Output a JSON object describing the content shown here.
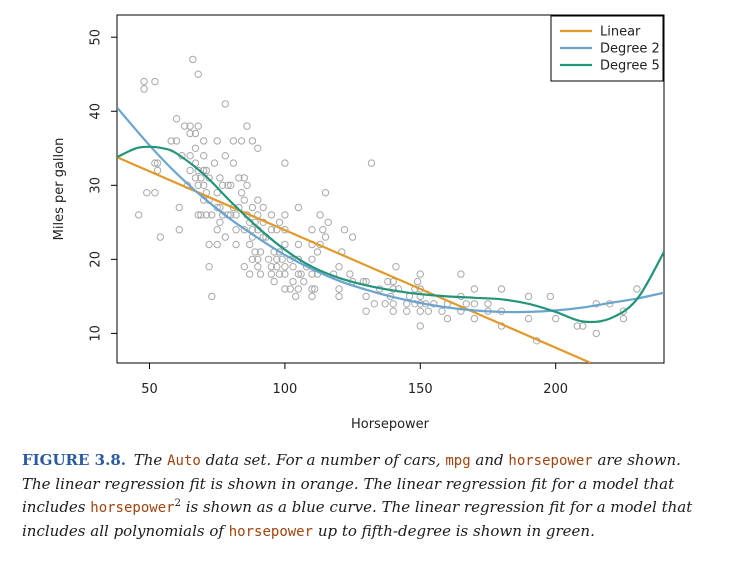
{
  "chart_data": {
    "type": "scatter",
    "xlabel": "Horsepower",
    "ylabel": "Miles per gallon",
    "xlim": [
      38,
      240
    ],
    "ylim": [
      6,
      53
    ],
    "xticks": [
      50,
      100,
      150,
      200
    ],
    "yticks": [
      10,
      20,
      30,
      40,
      50
    ],
    "grid": false,
    "legend_position": "top-right",
    "colors": {
      "points": "#a8a8a8",
      "linear": "#e09a2a",
      "degree2": "#6aa5cf",
      "degree5": "#23957a"
    },
    "points": [
      [
        46,
        26
      ],
      [
        48,
        44
      ],
      [
        48,
        43
      ],
      [
        49,
        29
      ],
      [
        52,
        44
      ],
      [
        52,
        33
      ],
      [
        52,
        29
      ],
      [
        53,
        32
      ],
      [
        53,
        33
      ],
      [
        54,
        23
      ],
      [
        58,
        36
      ],
      [
        60,
        39
      ],
      [
        60,
        36
      ],
      [
        61,
        24
      ],
      [
        61,
        27
      ],
      [
        62,
        34
      ],
      [
        63,
        38
      ],
      [
        64,
        30
      ],
      [
        65,
        32
      ],
      [
        65,
        34
      ],
      [
        65,
        38
      ],
      [
        65,
        37
      ],
      [
        66,
        47
      ],
      [
        67,
        31
      ],
      [
        67,
        33
      ],
      [
        67,
        35
      ],
      [
        67,
        37
      ],
      [
        68,
        30
      ],
      [
        68,
        32
      ],
      [
        68,
        26
      ],
      [
        68,
        38
      ],
      [
        68,
        45
      ],
      [
        69,
        31
      ],
      [
        69,
        26
      ],
      [
        70,
        28
      ],
      [
        70,
        32
      ],
      [
        70,
        34
      ],
      [
        70,
        36
      ],
      [
        70,
        30
      ],
      [
        71,
        32
      ],
      [
        71,
        29
      ],
      [
        71,
        26
      ],
      [
        72,
        31
      ],
      [
        72,
        28
      ],
      [
        72,
        22
      ],
      [
        72,
        19
      ],
      [
        73,
        15
      ],
      [
        73,
        26
      ],
      [
        74,
        33
      ],
      [
        75,
        29
      ],
      [
        75,
        27
      ],
      [
        75,
        24
      ],
      [
        75,
        22
      ],
      [
        75,
        36
      ],
      [
        76,
        31
      ],
      [
        76,
        25
      ],
      [
        76,
        27
      ],
      [
        77,
        26
      ],
      [
        77,
        30
      ],
      [
        78,
        23
      ],
      [
        78,
        34
      ],
      [
        78,
        41
      ],
      [
        79,
        26
      ],
      [
        79,
        30
      ],
      [
        80,
        26
      ],
      [
        80,
        30
      ],
      [
        81,
        27
      ],
      [
        81,
        33
      ],
      [
        81,
        36
      ],
      [
        82,
        24
      ],
      [
        82,
        26
      ],
      [
        82,
        22
      ],
      [
        83,
        31
      ],
      [
        83,
        27
      ],
      [
        84,
        29
      ],
      [
        84,
        36
      ],
      [
        85,
        31
      ],
      [
        85,
        28
      ],
      [
        85,
        24
      ],
      [
        85,
        19
      ],
      [
        86,
        30
      ],
      [
        86,
        38
      ],
      [
        86,
        26
      ],
      [
        87,
        25
      ],
      [
        87,
        22
      ],
      [
        87,
        18
      ],
      [
        88,
        24
      ],
      [
        88,
        27
      ],
      [
        88,
        20
      ],
      [
        88,
        23
      ],
      [
        88,
        36
      ],
      [
        89,
        25
      ],
      [
        89,
        21
      ],
      [
        90,
        24
      ],
      [
        90,
        28
      ],
      [
        90,
        19
      ],
      [
        90,
        20
      ],
      [
        90,
        26
      ],
      [
        90,
        35
      ],
      [
        91,
        21
      ],
      [
        91,
        18
      ],
      [
        92,
        25
      ],
      [
        92,
        23
      ],
      [
        92,
        27
      ],
      [
        93,
        23
      ],
      [
        94,
        20
      ],
      [
        95,
        24
      ],
      [
        95,
        18
      ],
      [
        95,
        26
      ],
      [
        95,
        19
      ],
      [
        96,
        21
      ],
      [
        96,
        17
      ],
      [
        97,
        24
      ],
      [
        97,
        19
      ],
      [
        97,
        20
      ],
      [
        98,
        21
      ],
      [
        98,
        18
      ],
      [
        98,
        25
      ],
      [
        99,
        20
      ],
      [
        100,
        16
      ],
      [
        100,
        19
      ],
      [
        100,
        22
      ],
      [
        100,
        24
      ],
      [
        100,
        26
      ],
      [
        100,
        18
      ],
      [
        100,
        33
      ],
      [
        102,
        16
      ],
      [
        102,
        20
      ],
      [
        103,
        17
      ],
      [
        103,
        19
      ],
      [
        104,
        15
      ],
      [
        105,
        16
      ],
      [
        105,
        18
      ],
      [
        105,
        20
      ],
      [
        105,
        22
      ],
      [
        105,
        27
      ],
      [
        106,
        18
      ],
      [
        107,
        17
      ],
      [
        108,
        19
      ],
      [
        110,
        16
      ],
      [
        110,
        18
      ],
      [
        110,
        20
      ],
      [
        110,
        22
      ],
      [
        110,
        24
      ],
      [
        110,
        15
      ],
      [
        111,
        16
      ],
      [
        112,
        18
      ],
      [
        112,
        21
      ],
      [
        113,
        26
      ],
      [
        113,
        22
      ],
      [
        114,
        24
      ],
      [
        115,
        23
      ],
      [
        115,
        29
      ],
      [
        116,
        25
      ],
      [
        118,
        18
      ],
      [
        120,
        15
      ],
      [
        120,
        16
      ],
      [
        120,
        19
      ],
      [
        121,
        21
      ],
      [
        122,
        24
      ],
      [
        124,
        18
      ],
      [
        125,
        17
      ],
      [
        125,
        23
      ],
      [
        129,
        17
      ],
      [
        130,
        13
      ],
      [
        130,
        15
      ],
      [
        130,
        17
      ],
      [
        132,
        33
      ],
      [
        133,
        14
      ],
      [
        135,
        16
      ],
      [
        137,
        14
      ],
      [
        138,
        17
      ],
      [
        139,
        15
      ],
      [
        140,
        16
      ],
      [
        140,
        14
      ],
      [
        140,
        13
      ],
      [
        140,
        17
      ],
      [
        141,
        19
      ],
      [
        142,
        16
      ],
      [
        145,
        14
      ],
      [
        145,
        13
      ],
      [
        146,
        15
      ],
      [
        148,
        16
      ],
      [
        148,
        14
      ],
      [
        149,
        17
      ],
      [
        150,
        11
      ],
      [
        150,
        13
      ],
      [
        150,
        14
      ],
      [
        150,
        15
      ],
      [
        150,
        16
      ],
      [
        150,
        18
      ],
      [
        152,
        14
      ],
      [
        153,
        13
      ],
      [
        155,
        14
      ],
      [
        158,
        13
      ],
      [
        160,
        12
      ],
      [
        160,
        14
      ],
      [
        165,
        13
      ],
      [
        165,
        15
      ],
      [
        165,
        18
      ],
      [
        167,
        14
      ],
      [
        170,
        12
      ],
      [
        170,
        14
      ],
      [
        170,
        16
      ],
      [
        175,
        13
      ],
      [
        175,
        14
      ],
      [
        180,
        11
      ],
      [
        180,
        13
      ],
      [
        180,
        16
      ],
      [
        190,
        12
      ],
      [
        190,
        15
      ],
      [
        193,
        9
      ],
      [
        198,
        15
      ],
      [
        200,
        12
      ],
      [
        208,
        11
      ],
      [
        210,
        11
      ],
      [
        215,
        10
      ],
      [
        215,
        14
      ],
      [
        220,
        14
      ],
      [
        225,
        12
      ],
      [
        225,
        13
      ],
      [
        230,
        16
      ]
    ],
    "series": [
      {
        "name": "Linear",
        "type": "line",
        "x": [
          38,
          213
        ],
        "y": [
          33.8,
          6
        ]
      },
      {
        "name": "Degree 2",
        "type": "line",
        "x": [
          38,
          50,
          60,
          70,
          80,
          90,
          100,
          110,
          120,
          130,
          140,
          150,
          160,
          170,
          180,
          190,
          200,
          210,
          220,
          230,
          240
        ],
        "y": [
          40.5,
          35.4,
          31.6,
          28.3,
          25.4,
          22.9,
          20.6,
          18.7,
          17.1,
          15.9,
          14.9,
          14.1,
          13.5,
          13.1,
          12.9,
          12.9,
          13.1,
          13.5,
          14.1,
          14.7,
          15.5
        ]
      },
      {
        "name": "Degree 5",
        "type": "line",
        "x": [
          38,
          45,
          50,
          55,
          60,
          70,
          80,
          90,
          100,
          110,
          120,
          130,
          140,
          150,
          160,
          170,
          180,
          190,
          200,
          210,
          220,
          230,
          240
        ],
        "y": [
          33.8,
          35.0,
          35.2,
          35.0,
          34.3,
          31.5,
          27.8,
          24.3,
          21.3,
          19.0,
          17.5,
          16.5,
          15.8,
          15.3,
          15.0,
          14.8,
          14.6,
          14.0,
          12.9,
          11.6,
          12.0,
          14.6,
          21.0
        ]
      }
    ]
  },
  "caption": {
    "label": "FIGURE 3.8.",
    "t1": " The ",
    "c1": "Auto",
    "t2": " data set. For a number of cars, ",
    "c2": "mpg",
    "t3": " and ",
    "c3": "horsepower",
    "t4": " are shown. The linear regression fit is shown in orange. The linear regression fit for a model that includes ",
    "c4": "horsepower",
    "sup": "2",
    "t5": " is shown as a blue curve. The linear regression fit for a model that includes all polynomials of ",
    "c5": "horsepower",
    "t6": " up to fifth-degree is shown in green."
  }
}
